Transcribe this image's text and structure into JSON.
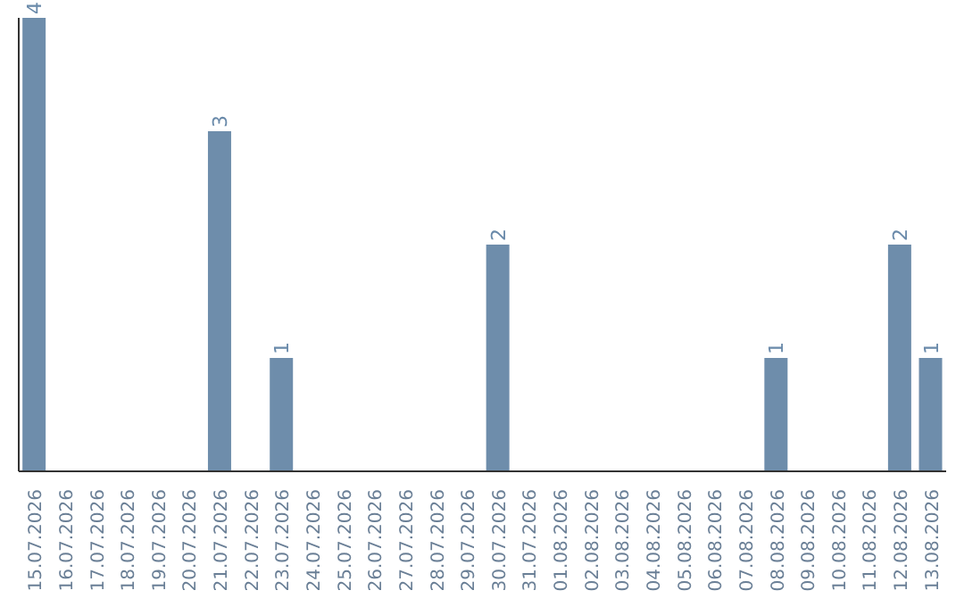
{
  "chart_data": {
    "type": "bar",
    "categories": [
      "15.07.2026",
      "16.07.2026",
      "17.07.2026",
      "18.07.2026",
      "19.07.2026",
      "20.07.2026",
      "21.07.2026",
      "22.07.2026",
      "23.07.2026",
      "24.07.2026",
      "25.07.2026",
      "26.07.2026",
      "27.07.2026",
      "28.07.2026",
      "29.07.2026",
      "30.07.2026",
      "31.07.2026",
      "01.08.2026",
      "02.08.2026",
      "03.08.2026",
      "04.08.2026",
      "05.08.2026",
      "06.08.2026",
      "07.08.2026",
      "08.08.2026",
      "09.08.2026",
      "10.08.2026",
      "11.08.2026",
      "12.08.2026",
      "13.08.2026"
    ],
    "values": [
      4,
      0,
      0,
      0,
      0,
      0,
      3,
      0,
      1,
      0,
      0,
      0,
      0,
      0,
      0,
      2,
      0,
      0,
      0,
      0,
      0,
      0,
      0,
      0,
      1,
      0,
      0,
      0,
      2,
      1
    ],
    "value_labels": [
      "4",
      null,
      null,
      null,
      null,
      null,
      "3",
      null,
      "1",
      null,
      null,
      null,
      null,
      null,
      null,
      "2",
      null,
      null,
      null,
      null,
      null,
      null,
      null,
      null,
      "1",
      null,
      null,
      null,
      "2",
      "1"
    ],
    "color": "#6e8dab",
    "grid": false,
    "legend": false
  }
}
